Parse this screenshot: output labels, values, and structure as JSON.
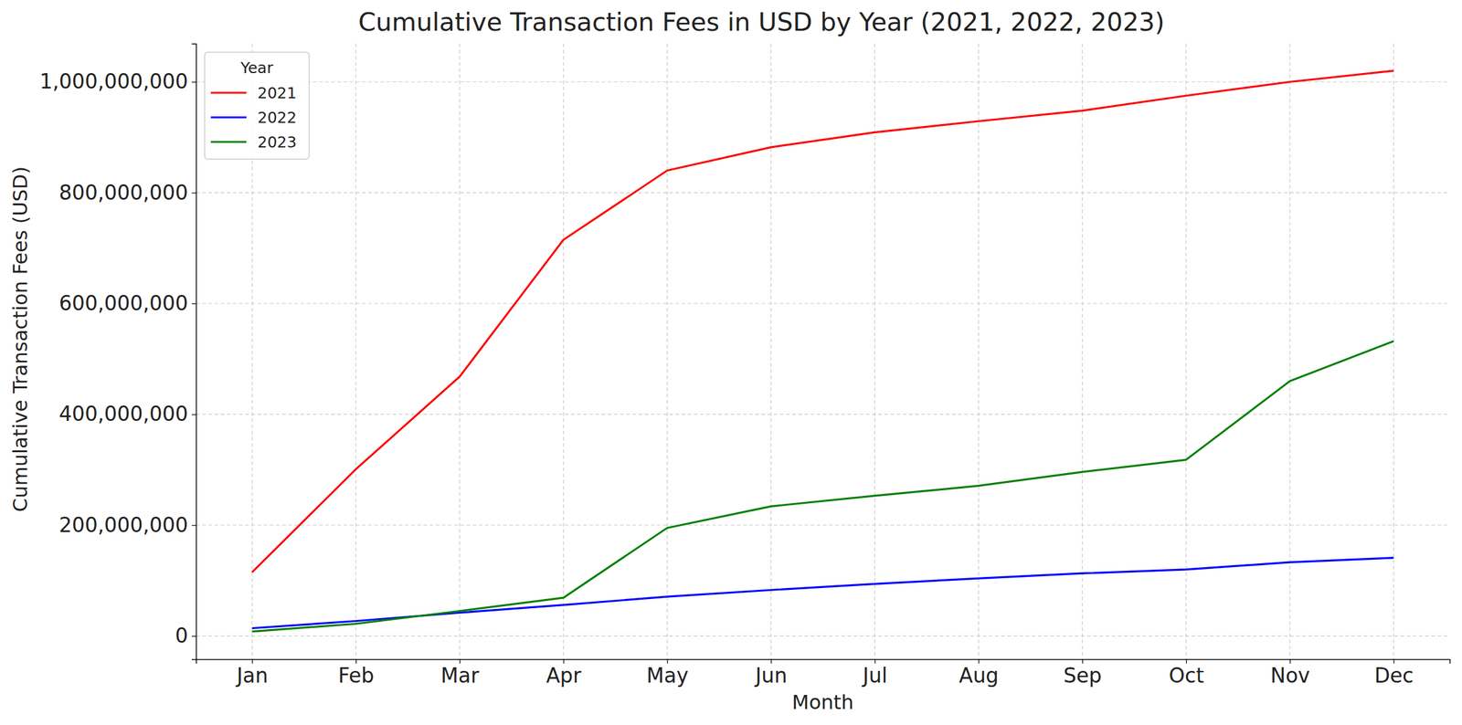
{
  "chart_data": {
    "type": "line",
    "title": "Cumulative Transaction Fees in USD by Year (2021, 2022, 2023)",
    "x_label": "Month",
    "y_label": "Cumulative Transaction Fees (USD)",
    "legend_title": "Year",
    "legend": "upper left",
    "grid": true,
    "categories": [
      "Jan",
      "Feb",
      "Mar",
      "Apr",
      "May",
      "Jun",
      "Jul",
      "Aug",
      "Sep",
      "Oct",
      "Nov",
      "Dec"
    ],
    "series": [
      {
        "name": "2021",
        "color": "#ff0000",
        "values": [
          115000000,
          301000000,
          468000000,
          715000000,
          840000000,
          882000000,
          909000000,
          929000000,
          948000000,
          975000000,
          1000000000,
          1020000000
        ]
      },
      {
        "name": "2022",
        "color": "#0000ff",
        "values": [
          14000000,
          27000000,
          42000000,
          56000000,
          71000000,
          83000000,
          94000000,
          104000000,
          113000000,
          120000000,
          133000000,
          141000000
        ]
      },
      {
        "name": "2023",
        "color": "#008000",
        "values": [
          8000000,
          22000000,
          45000000,
          69000000,
          195000000,
          234000000,
          253000000,
          271000000,
          296000000,
          318000000,
          460000000,
          532000000
        ]
      }
    ],
    "ylim": [
      -42000000,
      1069000000
    ],
    "yticks": [
      0,
      {
        "value": 200000000,
        "label": "200,000,000"
      },
      {
        "value": 400000000,
        "label": "400,000,000"
      },
      {
        "value": 600000000,
        "label": "600,000,000"
      },
      {
        "value": 800000000,
        "label": "800,000,000"
      },
      {
        "value": 1000000000,
        "label": "1,000,000,000"
      }
    ]
  }
}
